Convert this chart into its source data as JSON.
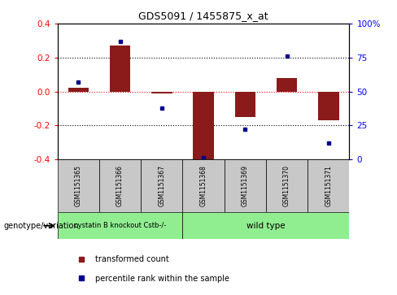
{
  "title": "GDS5091 / 1455875_x_at",
  "samples": [
    "GSM1151365",
    "GSM1151366",
    "GSM1151367",
    "GSM1151368",
    "GSM1151369",
    "GSM1151370",
    "GSM1151371"
  ],
  "red_bars": [
    0.02,
    0.27,
    -0.01,
    -0.4,
    -0.15,
    0.08,
    -0.17
  ],
  "blue_pct": [
    57,
    87,
    38,
    1,
    22,
    76,
    12
  ],
  "ylim": [
    -0.4,
    0.4
  ],
  "yticks_left": [
    -0.4,
    -0.2,
    0.0,
    0.2,
    0.4
  ],
  "yticks_right": [
    0,
    25,
    50,
    75,
    100
  ],
  "group1_samples": 3,
  "group1_label": "cystatin B knockout Cstb-/-",
  "group2_label": "wild type",
  "group_color": "#90EE90",
  "bar_color": "#8B1A1A",
  "blue_color": "#00008B",
  "bg_gray": "#C8C8C8",
  "legend_red_label": "transformed count",
  "legend_blue_label": "percentile rank within the sample",
  "genotype_label": "genotype/variation"
}
